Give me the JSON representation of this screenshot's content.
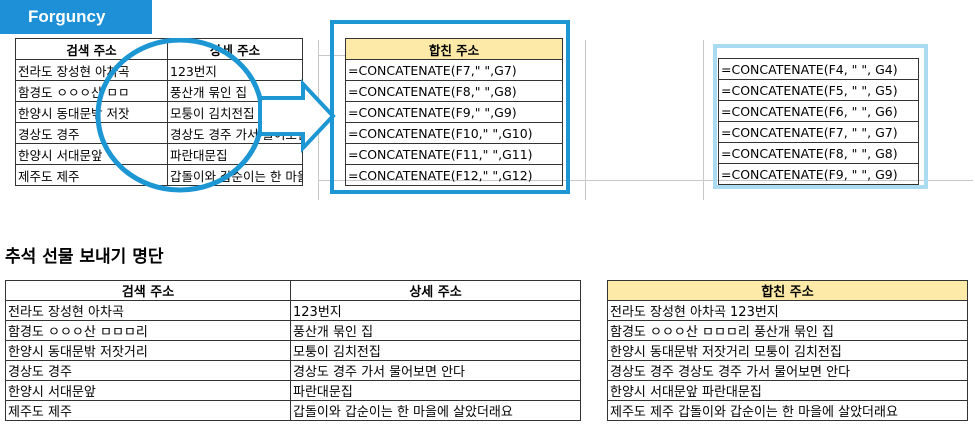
{
  "app_badge": "Forguncy",
  "top_left_table": {
    "headers": [
      "검색 주소",
      "상세 주소"
    ],
    "rows": [
      [
        "전라도 장성현 아차곡",
        "123번지"
      ],
      [
        "함경도 ㅇㅇㅇ산 ㅁㅁ",
        "풍산개 묶인 집"
      ],
      [
        "한양시 동대문밖 저잣",
        "모퉁이 김치전집"
      ],
      [
        "경상도 경주",
        "경상도 경주 가서 물어보면"
      ],
      [
        "한양시 서대문앞",
        "파란대문집"
      ],
      [
        "제주도 제주",
        "갑돌이와 갑순이는 한 마을"
      ]
    ]
  },
  "top_mid_table": {
    "header": "합친 주소",
    "rows": [
      "=CONCATENATE(F7,\" \",G7)",
      "=CONCATENATE(F8,\" \",G8)",
      "=CONCATENATE(F9,\" \",G9)",
      "=CONCATENATE(F10,\" \",G10)",
      "=CONCATENATE(F11,\" \",G11)",
      "=CONCATENATE(F12,\" \",G12)"
    ]
  },
  "top_right_table": {
    "rows": [
      "=CONCATENATE(F4, \" \", G4)",
      "=CONCATENATE(F5, \" \", G5)",
      "=CONCATENATE(F6, \" \", G6)",
      "=CONCATENATE(F7, \" \", G7)",
      "=CONCATENATE(F8, \" \", G8)",
      "=CONCATENATE(F9, \" \", G9)"
    ]
  },
  "section_title": "추석 선물 보내기 명단",
  "bottom_left_table": {
    "headers": [
      "검색 주소",
      "상세 주소"
    ],
    "rows": [
      [
        "전라도 장성현 아차곡",
        "123번지"
      ],
      [
        "함경도 ㅇㅇㅇ산 ㅁㅁㅁ리",
        "풍산개 묶인 집"
      ],
      [
        "한양시 동대문밖 저잣거리",
        "모퉁이 김치전집"
      ],
      [
        "경상도 경주",
        "경상도 경주 가서 물어보면 안다"
      ],
      [
        "한양시 서대문앞",
        "파란대문집"
      ],
      [
        "제주도 제주",
        "갑돌이와 갑순이는 한 마을에 살았더래요"
      ]
    ]
  },
  "bottom_right_table": {
    "header": "합친 주소",
    "rows": [
      "전라도 장성현 아차곡 123번지",
      "함경도 ㅇㅇㅇ산 ㅁㅁㅁ리  풍산개 묶인 집",
      "한양시 동대문밖 저잣거리  모퉁이 김치전집",
      "경상도 경주 경상도 경주 가서 물어보면 안다",
      "한양시 서대문앞  파란대문집",
      "제주도 제주 갑돌이와 갑순이는 한 마을에 살았더래요"
    ]
  },
  "colors": {
    "badge": "#1e90d8",
    "highlight_box": "#1d96d4",
    "light_box": "#a9dcf0",
    "header_fill": "#fde9a8",
    "arrow": "#1d96d4"
  }
}
